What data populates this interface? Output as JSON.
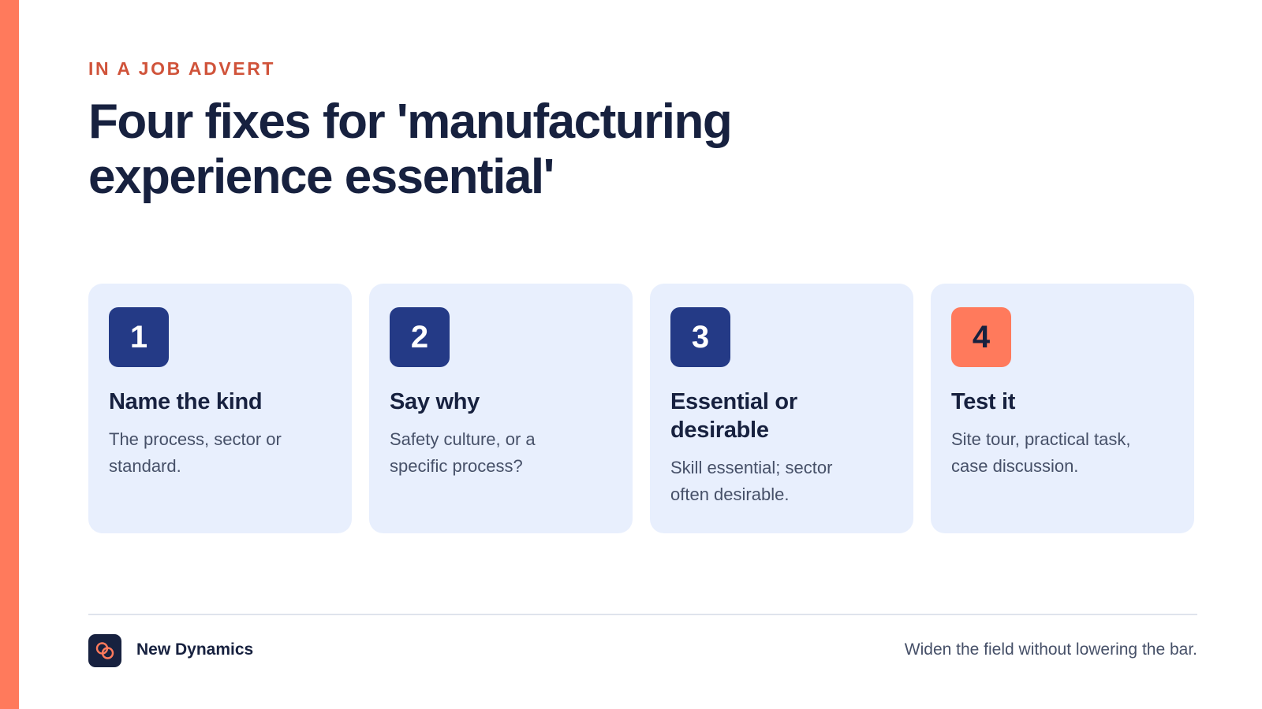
{
  "eyebrow": "IN A JOB ADVERT",
  "title": "Four fixes for 'manufacturing experience essential'",
  "cards": [
    {
      "number": "1",
      "title": "Name the kind",
      "text": "The process, sector or standard."
    },
    {
      "number": "2",
      "title": "Say why",
      "text": "Safety culture, or a specific process?"
    },
    {
      "number": "3",
      "title": "Essential or desirable",
      "text": "Skill essential; sector often desirable."
    },
    {
      "number": "4",
      "title": "Test it",
      "text": "Site tour, practical task, case discussion."
    }
  ],
  "footer": {
    "brand": "New Dynamics",
    "tagline": "Widen the field without lowering the bar."
  },
  "colors": {
    "accent": "#ff7a5c",
    "eyebrow": "#d0533a",
    "navy": "#17213f",
    "badge": "#243a86",
    "card_bg": "#e8effd"
  },
  "icons": {
    "logo": "interlocking-rings-icon"
  }
}
